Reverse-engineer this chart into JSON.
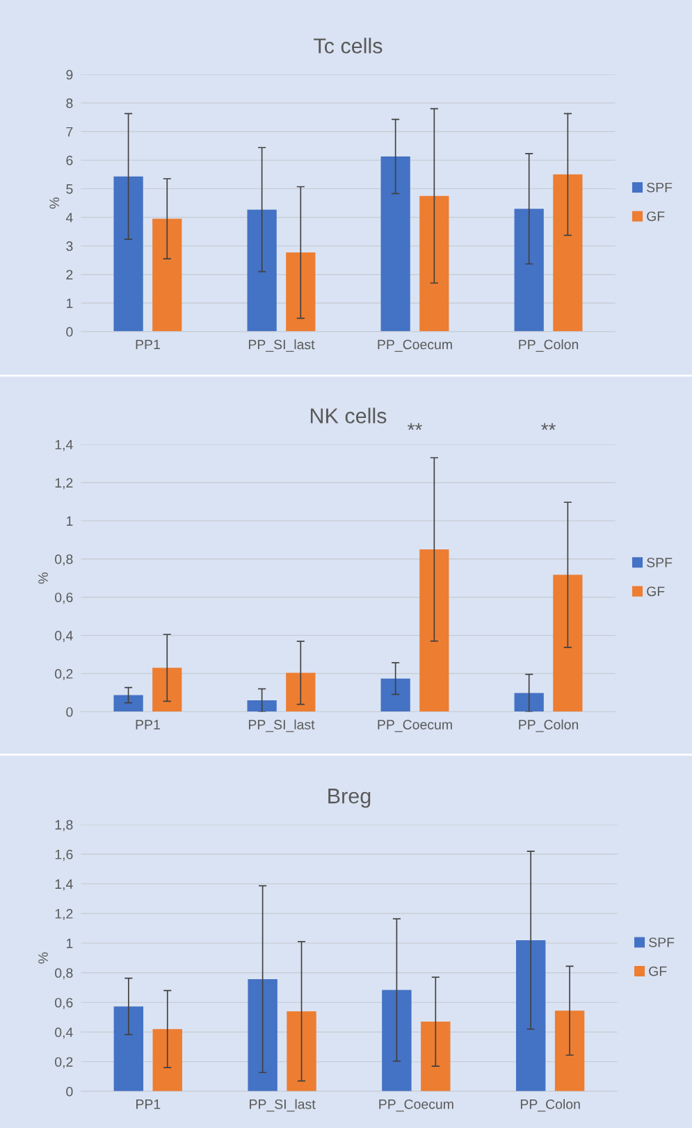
{
  "chart_data": [
    {
      "type": "bar",
      "title": "Tc cells",
      "ylabel": "%",
      "categories": [
        "PP1",
        "PP_SI_last",
        "PP_Coecum",
        "PP_Colon"
      ],
      "series": [
        {
          "name": "SPF",
          "color": "#4472c4",
          "values": [
            5.43,
            4.27,
            6.13,
            4.3
          ],
          "errors": [
            2.2,
            2.17,
            1.3,
            1.93
          ]
        },
        {
          "name": "GF",
          "color": "#ed7d31",
          "values": [
            3.95,
            2.77,
            4.75,
            5.5
          ],
          "errors": [
            1.4,
            2.3,
            3.05,
            2.13
          ]
        }
      ],
      "ylim": [
        0,
        9
      ],
      "yticks": [
        0,
        1,
        2,
        3,
        4,
        5,
        6,
        7,
        8,
        9
      ],
      "grid": "y",
      "legend": "right"
    },
    {
      "type": "bar",
      "title": "NK cells",
      "ylabel": "%",
      "categories": [
        "PP1",
        "PP_SI_last",
        "PP_Coecum",
        "PP_Colon"
      ],
      "series": [
        {
          "name": "SPF",
          "color": "#4472c4",
          "values": [
            0.087,
            0.06,
            0.174,
            0.098
          ],
          "errors": [
            0.04,
            0.06,
            0.083,
            0.098
          ]
        },
        {
          "name": "GF",
          "color": "#ed7d31",
          "values": [
            0.23,
            0.204,
            0.85,
            0.717
          ],
          "errors": [
            0.175,
            0.165,
            0.48,
            0.38
          ]
        }
      ],
      "ylim": [
        0,
        1.4
      ],
      "yticks": [
        0,
        {
          "value": 0.2,
          "label": "0,2"
        },
        {
          "value": 0.4,
          "label": "0,4"
        },
        {
          "value": 0.6,
          "label": "0,6"
        },
        {
          "value": 0.8,
          "label": "0,8"
        },
        1,
        {
          "value": 1.2,
          "label": "1,2"
        },
        {
          "value": 1.4,
          "label": "1,4"
        }
      ],
      "annotations": [
        "**",
        "**"
      ],
      "grid": "y",
      "legend": "right"
    },
    {
      "type": "bar",
      "title": "Breg",
      "ylabel": "%",
      "categories": [
        "PP1",
        "PP_SI_last",
        "PP_Coecum",
        "PP_Colon"
      ],
      "series": [
        {
          "name": "SPF",
          "color": "#4472c4",
          "values": [
            0.573,
            0.757,
            0.684,
            1.02
          ],
          "errors": [
            0.19,
            0.63,
            0.48,
            0.6
          ]
        },
        {
          "name": "GF",
          "color": "#ed7d31",
          "values": [
            0.42,
            0.54,
            0.47,
            0.544
          ],
          "errors": [
            0.26,
            0.47,
            0.3,
            0.3
          ]
        }
      ],
      "ylim": [
        0,
        1.8
      ],
      "yticks": [
        0,
        {
          "value": 0.2,
          "label": "0,2"
        },
        {
          "value": 0.4,
          "label": "0,4"
        },
        {
          "value": 0.6,
          "label": "0,6"
        },
        {
          "value": 0.8,
          "label": "0,8"
        },
        1,
        {
          "value": 1.2,
          "label": "1,2"
        },
        {
          "value": 1.4,
          "label": "1,4"
        },
        {
          "value": 1.6,
          "label": "1,6"
        },
        {
          "value": 1.8,
          "label": "1,8"
        }
      ],
      "grid": "y",
      "legend": "right"
    }
  ]
}
